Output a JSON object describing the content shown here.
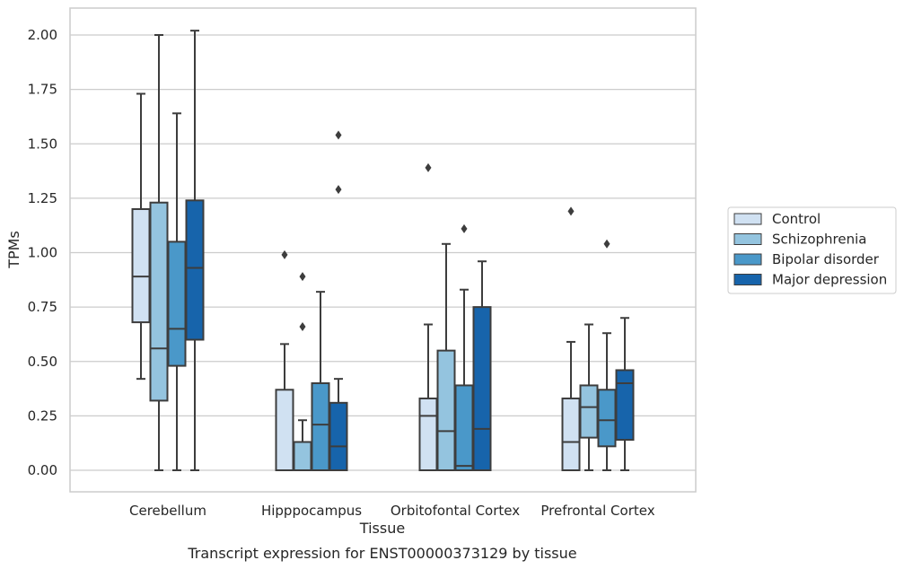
{
  "chart_data": {
    "type": "boxplot",
    "title": "Transcript expression for ENST00000373129 by tissue",
    "xlabel": "Tissue",
    "ylabel": "TPMs",
    "ylim": [
      -0.1,
      2.13
    ],
    "yticks": [
      "0.00",
      "0.25",
      "0.50",
      "0.75",
      "1.00",
      "1.25",
      "1.50",
      "1.75",
      "2.00"
    ],
    "grid": true,
    "legend_position": "right",
    "categories": [
      "Cerebellum",
      "Hipppocampus",
      "Orbitofontal Cortex",
      "Prefrontal Cortex"
    ],
    "series": [
      {
        "name": "Control",
        "color": "#d0e1f2",
        "boxes": [
          {
            "whislo": 0.42,
            "q1": 0.68,
            "med": 0.89,
            "q3": 1.2,
            "whishi": 1.73,
            "fliers": []
          },
          {
            "whislo": 0.0,
            "q1": 0.0,
            "med": 0.0,
            "q3": 0.37,
            "whishi": 0.58,
            "fliers": [
              0.99
            ]
          },
          {
            "whislo": 0.0,
            "q1": 0.0,
            "med": 0.25,
            "q3": 0.33,
            "whishi": 0.67,
            "fliers": [
              1.39
            ]
          },
          {
            "whislo": 0.0,
            "q1": 0.0,
            "med": 0.13,
            "q3": 0.33,
            "whishi": 0.59,
            "fliers": [
              1.19
            ]
          }
        ]
      },
      {
        "name": "Schizophrenia",
        "color": "#94c4df",
        "boxes": [
          {
            "whislo": 0.0,
            "q1": 0.32,
            "med": 0.56,
            "q3": 1.23,
            "whishi": 2.0,
            "fliers": []
          },
          {
            "whislo": 0.0,
            "q1": 0.0,
            "med": 0.0,
            "q3": 0.13,
            "whishi": 0.23,
            "fliers": [
              0.66,
              0.89
            ]
          },
          {
            "whislo": 0.0,
            "q1": 0.0,
            "med": 0.18,
            "q3": 0.55,
            "whishi": 1.04,
            "fliers": []
          },
          {
            "whislo": 0.0,
            "q1": 0.15,
            "med": 0.29,
            "q3": 0.39,
            "whishi": 0.67,
            "fliers": []
          }
        ]
      },
      {
        "name": "Bipolar disorder",
        "color": "#4a98c9",
        "boxes": [
          {
            "whislo": 0.0,
            "q1": 0.48,
            "med": 0.65,
            "q3": 1.05,
            "whishi": 1.64,
            "fliers": []
          },
          {
            "whislo": 0.0,
            "q1": 0.0,
            "med": 0.21,
            "q3": 0.4,
            "whishi": 0.82,
            "fliers": []
          },
          {
            "whislo": 0.0,
            "q1": 0.0,
            "med": 0.02,
            "q3": 0.39,
            "whishi": 0.83,
            "fliers": [
              1.11
            ]
          },
          {
            "whislo": 0.0,
            "q1": 0.11,
            "med": 0.23,
            "q3": 0.37,
            "whishi": 0.63,
            "fliers": [
              1.04
            ]
          }
        ]
      },
      {
        "name": "Major depression",
        "color": "#1764ab",
        "boxes": [
          {
            "whislo": 0.0,
            "q1": 0.6,
            "med": 0.93,
            "q3": 1.24,
            "whishi": 2.02,
            "fliers": []
          },
          {
            "whislo": 0.0,
            "q1": 0.0,
            "med": 0.11,
            "q3": 0.31,
            "whishi": 0.42,
            "fliers": [
              1.29,
              1.54
            ]
          },
          {
            "whislo": 0.0,
            "q1": 0.0,
            "med": 0.19,
            "q3": 0.75,
            "whishi": 0.96,
            "fliers": []
          },
          {
            "whislo": 0.0,
            "q1": 0.14,
            "med": 0.4,
            "q3": 0.46,
            "whishi": 0.7,
            "fliers": []
          }
        ]
      }
    ]
  }
}
